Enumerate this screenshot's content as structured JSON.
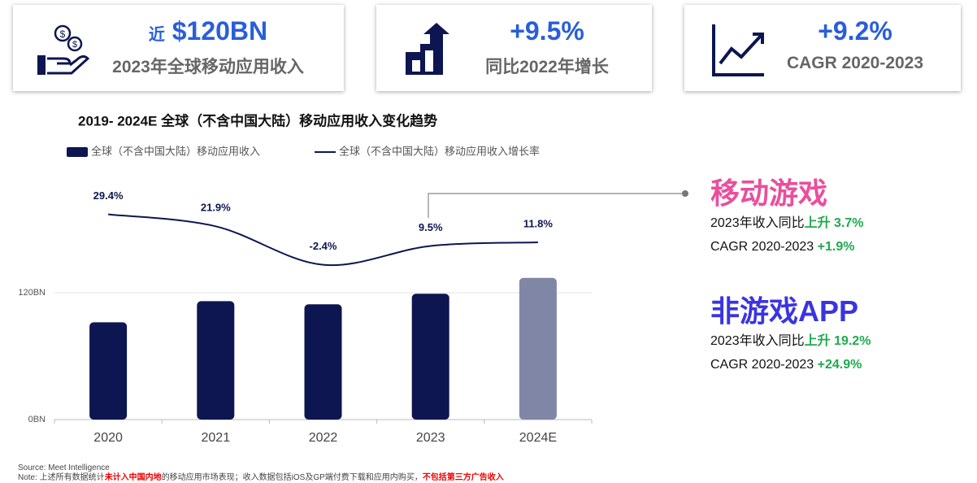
{
  "cards": [
    {
      "prefix": "近",
      "value": "$120BN",
      "label": "2023年全球移动应用收入"
    },
    {
      "value": "+9.5%",
      "label": "同比2022年增长"
    },
    {
      "value": "+9.2%",
      "label": "CAGR 2020-2023"
    }
  ],
  "chart_data": {
    "type": "bar",
    "title": "2019- 2024E 全球（不含中国大陆）移动应用收入变化趋势",
    "categories": [
      "2020",
      "2021",
      "2022",
      "2023",
      "2024E"
    ],
    "ylim": [
      0,
      240
    ],
    "yticks": [
      {
        "value": 0,
        "label": "0BN"
      },
      {
        "value": 120,
        "label": "120BN"
      }
    ],
    "y2lim": [
      -100,
      60
    ],
    "grid": true,
    "legend": "top-left",
    "series": [
      {
        "name": "全球（不含中国大陆）移动应用收入",
        "color": "#0d1650",
        "colors": [
          "#0d1650",
          "#0d1650",
          "#0d1650",
          "#0d1650",
          "#8086a6"
        ],
        "values": [
          92,
          112,
          109,
          119,
          134
        ]
      },
      {
        "name": "全球（不含中国大陆）移动应用收入增长率",
        "type": "line",
        "axis": "y2",
        "color": "#0d1650",
        "values": [
          29.4,
          21.9,
          -2.4,
          9.5,
          11.8
        ],
        "value_labels": [
          "29.4%",
          "21.9%",
          "-2.4%",
          "9.5%",
          "11.8%"
        ]
      }
    ]
  },
  "side": [
    {
      "title": "移动游戏",
      "yoy_label": "2023年收入同比",
      "yoy_value": "上升 3.7%",
      "cagr_label": "CAGR 2020-2023",
      "cagr_value": "+1.9%"
    },
    {
      "title": "非游戏APP",
      "yoy_label": "2023年收入同比",
      "yoy_value": "上升 19.2%",
      "cagr_label": "CAGR 2020-2023",
      "cagr_value": "+24.9%"
    }
  ],
  "notes": {
    "source": "Source: Meet Intelligence",
    "note": [
      "Note: 上述所有数据统计",
      "未计入中国内地",
      "的移动应用市场表现；收入数据包括iOS及GP端付费下载和应用内购买，",
      "不包括第三方广告收入"
    ]
  }
}
